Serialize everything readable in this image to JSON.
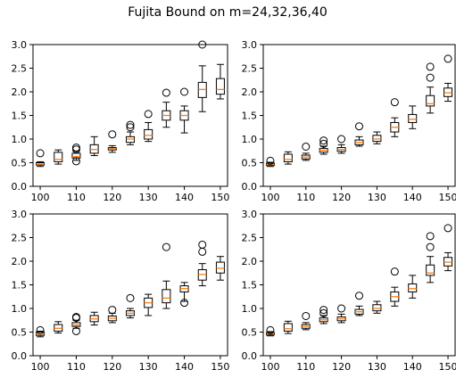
{
  "figure": {
    "title": "Fujita Bound on m=24,32,36,40"
  },
  "chart_data": [
    {
      "type": "box",
      "title": "",
      "x_ticks": [
        100,
        110,
        120,
        130,
        140,
        150
      ],
      "y_ticks": [
        "0.0",
        "0.5",
        "1.0",
        "1.5",
        "2.0",
        "2.5",
        "3.0"
      ],
      "xlim": [
        98,
        152
      ],
      "ylim": [
        0,
        3
      ],
      "boxes": [
        {
          "x": 100,
          "whislo": 0.42,
          "q1": 0.45,
          "med": 0.47,
          "q3": 0.5,
          "whishi": 0.52,
          "fliers": [
            0.7
          ]
        },
        {
          "x": 105,
          "whislo": 0.47,
          "q1": 0.52,
          "med": 0.57,
          "q3": 0.72,
          "whishi": 0.77,
          "fliers": []
        },
        {
          "x": 110,
          "whislo": 0.55,
          "q1": 0.6,
          "med": 0.63,
          "q3": 0.7,
          "whishi": 0.74,
          "fliers": [
            0.78,
            0.82,
            0.53
          ]
        },
        {
          "x": 115,
          "whislo": 0.65,
          "q1": 0.7,
          "med": 0.78,
          "q3": 0.88,
          "whishi": 1.05,
          "fliers": []
        },
        {
          "x": 120,
          "whislo": 0.72,
          "q1": 0.77,
          "med": 0.8,
          "q3": 0.82,
          "whishi": 0.86,
          "fliers": [
            1.1
          ]
        },
        {
          "x": 125,
          "whislo": 0.88,
          "q1": 0.93,
          "med": 1.0,
          "q3": 1.05,
          "whishi": 1.15,
          "fliers": [
            1.25,
            1.3
          ]
        },
        {
          "x": 130,
          "whislo": 0.95,
          "q1": 1.0,
          "med": 1.08,
          "q3": 1.2,
          "whishi": 1.35,
          "fliers": [
            1.53
          ]
        },
        {
          "x": 135,
          "whislo": 1.25,
          "q1": 1.4,
          "med": 1.5,
          "q3": 1.6,
          "whishi": 1.78,
          "fliers": [
            1.98
          ]
        },
        {
          "x": 140,
          "whislo": 1.13,
          "q1": 1.4,
          "med": 1.5,
          "q3": 1.6,
          "whishi": 1.7,
          "fliers": [
            2.0
          ]
        },
        {
          "x": 145,
          "whislo": 1.58,
          "q1": 1.88,
          "med": 2.05,
          "q3": 2.2,
          "whishi": 2.55,
          "fliers": [
            3.0
          ]
        },
        {
          "x": 150,
          "whislo": 1.85,
          "q1": 1.95,
          "med": 2.05,
          "q3": 2.28,
          "whishi": 2.58,
          "fliers": []
        }
      ]
    },
    {
      "type": "box",
      "title": "",
      "x_ticks": [
        100,
        110,
        120,
        130,
        140,
        150
      ],
      "y_ticks": [
        "0.0",
        "0.5",
        "1.0",
        "1.5",
        "2.0",
        "2.5",
        "3.0"
      ],
      "xlim": [
        98,
        152
      ],
      "ylim": [
        0,
        3
      ],
      "boxes": [
        {
          "x": 100,
          "whislo": 0.42,
          "q1": 0.44,
          "med": 0.46,
          "q3": 0.49,
          "whishi": 0.51,
          "fliers": [
            0.54
          ]
        },
        {
          "x": 105,
          "whislo": 0.47,
          "q1": 0.52,
          "med": 0.57,
          "q3": 0.68,
          "whishi": 0.73,
          "fliers": []
        },
        {
          "x": 110,
          "whislo": 0.55,
          "q1": 0.58,
          "med": 0.62,
          "q3": 0.66,
          "whishi": 0.7,
          "fliers": [
            0.84
          ]
        },
        {
          "x": 115,
          "whislo": 0.68,
          "q1": 0.72,
          "med": 0.76,
          "q3": 0.8,
          "whishi": 0.85,
          "fliers": [
            0.9,
            0.97
          ]
        },
        {
          "x": 120,
          "whislo": 0.7,
          "q1": 0.74,
          "med": 0.78,
          "q3": 0.82,
          "whishi": 0.88,
          "fliers": [
            1.0
          ]
        },
        {
          "x": 125,
          "whislo": 0.85,
          "q1": 0.88,
          "med": 0.93,
          "q3": 0.98,
          "whishi": 1.05,
          "fliers": [
            1.27
          ]
        },
        {
          "x": 130,
          "whislo": 0.9,
          "q1": 0.95,
          "med": 1.0,
          "q3": 1.08,
          "whishi": 1.15,
          "fliers": []
        },
        {
          "x": 135,
          "whislo": 1.05,
          "q1": 1.15,
          "med": 1.25,
          "q3": 1.35,
          "whishi": 1.45,
          "fliers": [
            1.78
          ]
        },
        {
          "x": 140,
          "whislo": 1.22,
          "q1": 1.35,
          "med": 1.42,
          "q3": 1.52,
          "whishi": 1.7,
          "fliers": []
        },
        {
          "x": 145,
          "whislo": 1.55,
          "q1": 1.7,
          "med": 1.75,
          "q3": 1.92,
          "whishi": 2.1,
          "fliers": [
            2.3,
            2.53
          ]
        },
        {
          "x": 150,
          "whislo": 1.8,
          "q1": 1.9,
          "med": 1.98,
          "q3": 2.08,
          "whishi": 2.18,
          "fliers": [
            2.7
          ]
        }
      ]
    },
    {
      "type": "box",
      "title": "",
      "x_ticks": [
        100,
        110,
        120,
        130,
        140,
        150
      ],
      "y_ticks": [
        "0.0",
        "0.5",
        "1.0",
        "1.5",
        "2.0",
        "2.5",
        "3.0"
      ],
      "xlim": [
        98,
        152
      ],
      "ylim": [
        0,
        3
      ],
      "boxes": [
        {
          "x": 100,
          "whislo": 0.4,
          "q1": 0.43,
          "med": 0.46,
          "q3": 0.5,
          "whishi": 0.52,
          "fliers": [
            0.54
          ]
        },
        {
          "x": 105,
          "whislo": 0.48,
          "q1": 0.52,
          "med": 0.58,
          "q3": 0.66,
          "whishi": 0.72,
          "fliers": []
        },
        {
          "x": 110,
          "whislo": 0.58,
          "q1": 0.62,
          "med": 0.65,
          "q3": 0.7,
          "whishi": 0.75,
          "fliers": [
            0.82,
            0.8,
            0.52
          ]
        },
        {
          "x": 115,
          "whislo": 0.65,
          "q1": 0.72,
          "med": 0.78,
          "q3": 0.85,
          "whishi": 0.92,
          "fliers": []
        },
        {
          "x": 120,
          "whislo": 0.7,
          "q1": 0.74,
          "med": 0.79,
          "q3": 0.84,
          "whishi": 0.9,
          "fliers": [
            0.97
          ]
        },
        {
          "x": 125,
          "whislo": 0.8,
          "q1": 0.85,
          "med": 0.9,
          "q3": 0.95,
          "whishi": 1.0,
          "fliers": [
            1.22
          ]
        },
        {
          "x": 130,
          "whislo": 0.85,
          "q1": 1.02,
          "med": 1.12,
          "q3": 1.22,
          "whishi": 1.3,
          "fliers": []
        },
        {
          "x": 135,
          "whislo": 1.0,
          "q1": 1.12,
          "med": 1.22,
          "q3": 1.4,
          "whishi": 1.58,
          "fliers": [
            2.3
          ]
        },
        {
          "x": 140,
          "whislo": 1.15,
          "q1": 1.35,
          "med": 1.42,
          "q3": 1.48,
          "whishi": 1.55,
          "fliers": [
            1.12
          ]
        },
        {
          "x": 145,
          "whislo": 1.48,
          "q1": 1.6,
          "med": 1.72,
          "q3": 1.82,
          "whishi": 1.95,
          "fliers": [
            2.2,
            2.35
          ]
        },
        {
          "x": 150,
          "whislo": 1.6,
          "q1": 1.75,
          "med": 1.85,
          "q3": 1.98,
          "whishi": 2.1,
          "fliers": []
        }
      ]
    },
    {
      "type": "box",
      "title": "",
      "x_ticks": [
        100,
        110,
        120,
        130,
        140,
        150
      ],
      "y_ticks": [
        "0.0",
        "0.5",
        "1.0",
        "1.5",
        "2.0",
        "2.5",
        "3.0"
      ],
      "xlim": [
        98,
        152
      ],
      "ylim": [
        0,
        3
      ],
      "boxes": [
        {
          "x": 100,
          "whislo": 0.42,
          "q1": 0.44,
          "med": 0.46,
          "q3": 0.49,
          "whishi": 0.51,
          "fliers": [
            0.54
          ]
        },
        {
          "x": 105,
          "whislo": 0.47,
          "q1": 0.52,
          "med": 0.57,
          "q3": 0.68,
          "whishi": 0.73,
          "fliers": []
        },
        {
          "x": 110,
          "whislo": 0.55,
          "q1": 0.58,
          "med": 0.62,
          "q3": 0.66,
          "whishi": 0.7,
          "fliers": [
            0.84
          ]
        },
        {
          "x": 115,
          "whislo": 0.68,
          "q1": 0.72,
          "med": 0.76,
          "q3": 0.8,
          "whishi": 0.85,
          "fliers": [
            0.9,
            0.97
          ]
        },
        {
          "x": 120,
          "whislo": 0.7,
          "q1": 0.74,
          "med": 0.78,
          "q3": 0.82,
          "whishi": 0.88,
          "fliers": [
            1.0
          ]
        },
        {
          "x": 125,
          "whislo": 0.85,
          "q1": 0.88,
          "med": 0.93,
          "q3": 0.98,
          "whishi": 1.05,
          "fliers": [
            1.27
          ]
        },
        {
          "x": 130,
          "whislo": 0.9,
          "q1": 0.95,
          "med": 1.0,
          "q3": 1.08,
          "whishi": 1.15,
          "fliers": []
        },
        {
          "x": 135,
          "whislo": 1.05,
          "q1": 1.15,
          "med": 1.25,
          "q3": 1.35,
          "whishi": 1.45,
          "fliers": [
            1.78
          ]
        },
        {
          "x": 140,
          "whislo": 1.22,
          "q1": 1.35,
          "med": 1.42,
          "q3": 1.52,
          "whishi": 1.7,
          "fliers": []
        },
        {
          "x": 145,
          "whislo": 1.55,
          "q1": 1.7,
          "med": 1.75,
          "q3": 1.92,
          "whishi": 2.1,
          "fliers": [
            2.3,
            2.53
          ]
        },
        {
          "x": 150,
          "whislo": 1.8,
          "q1": 1.9,
          "med": 1.98,
          "q3": 2.08,
          "whishi": 2.18,
          "fliers": [
            2.7
          ]
        }
      ]
    }
  ],
  "style": {
    "box": "#000000",
    "median": "#ff7f0e",
    "whisker": "#000000",
    "flier": "#000000"
  }
}
